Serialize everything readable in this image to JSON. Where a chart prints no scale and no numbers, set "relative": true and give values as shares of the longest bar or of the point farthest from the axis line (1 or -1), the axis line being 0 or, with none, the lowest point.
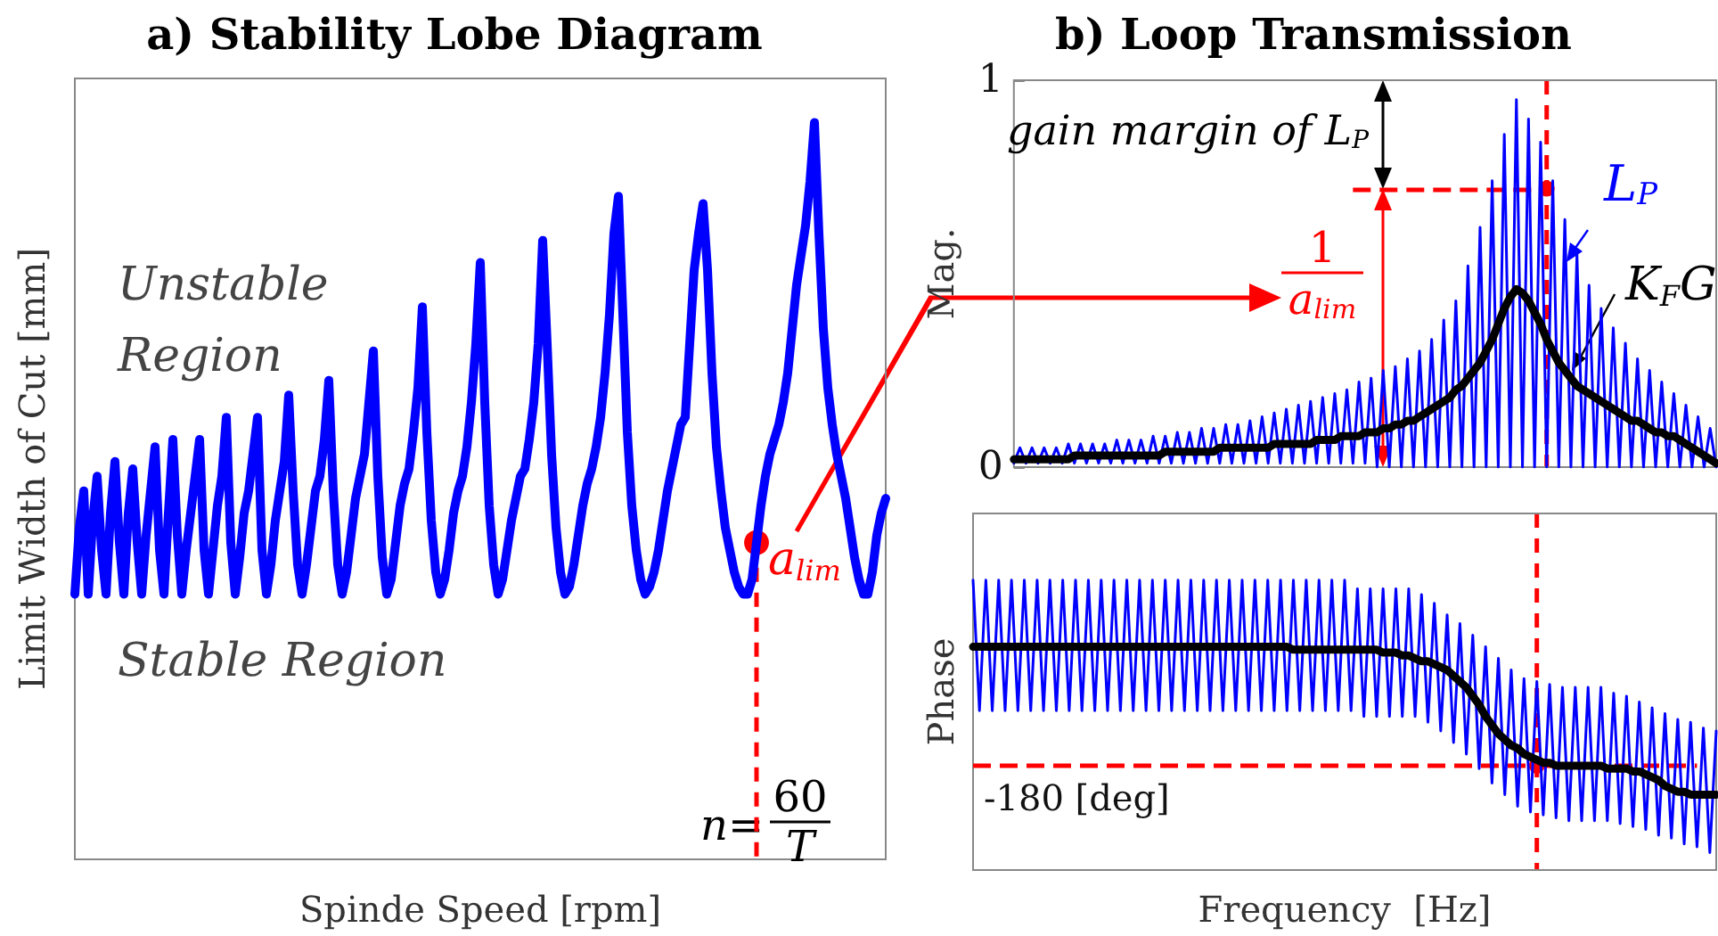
{
  "chart_data": [
    {
      "type": "line",
      "title": "a) Stability Lobe Diagram",
      "xlabel": "Spinde Speed [rpm]",
      "ylabel": "Limit Width of Cut [mm]",
      "relative": true,
      "tick_labels": false,
      "grid": false,
      "marker": "none",
      "categories": [
        null,
        null,
        null,
        null,
        null,
        null,
        null,
        null,
        null,
        null,
        null,
        null,
        null,
        null,
        null,
        null,
        null,
        null,
        null,
        null,
        null,
        null,
        null,
        null,
        null,
        null,
        null,
        null,
        null,
        null,
        null,
        null,
        null,
        null,
        null,
        null,
        null,
        null,
        null,
        null,
        null,
        null,
        null,
        null,
        null,
        null,
        null,
        null,
        null,
        null,
        null,
        null,
        null,
        null,
        null,
        null,
        null,
        null,
        null,
        null,
        null,
        null,
        null,
        null,
        null,
        null,
        null,
        null,
        null,
        null,
        null,
        null,
        null,
        null,
        null,
        null,
        null,
        null,
        null,
        null,
        null,
        null,
        null,
        null,
        null,
        null,
        null,
        null,
        null,
        null,
        null,
        null,
        null,
        null,
        null,
        null,
        null,
        null,
        null,
        null,
        null,
        null,
        null,
        null,
        null,
        null,
        null,
        null,
        null,
        null,
        null,
        null,
        null,
        null,
        null,
        null,
        null,
        null,
        null,
        null,
        null,
        null,
        null,
        null,
        null,
        null,
        null,
        null,
        null,
        null,
        null,
        null,
        null,
        null,
        null,
        null,
        null,
        null,
        null,
        null,
        null,
        null,
        null,
        null,
        null,
        null,
        null,
        null,
        null,
        null,
        null,
        null,
        null,
        null,
        null,
        null,
        null,
        null,
        null,
        null,
        null,
        null,
        null,
        null,
        null,
        null,
        null,
        null,
        null,
        null,
        null,
        null,
        null,
        null,
        null,
        null,
        null,
        null,
        null,
        null,
        null,
        null,
        null
      ],
      "series": [
        {
          "color": "#0000ff",
          "values": [
            0.36,
            0.45,
            0.5,
            0.36,
            0.46,
            0.52,
            0.42,
            0.36,
            0.47,
            0.54,
            0.43,
            0.36,
            0.47,
            0.53,
            0.43,
            0.36,
            0.44,
            0.5,
            0.56,
            0.42,
            0.36,
            0.47,
            0.57,
            0.44,
            0.36,
            0.42,
            0.47,
            0.52,
            0.57,
            0.42,
            0.36,
            0.42,
            0.48,
            0.52,
            0.6,
            0.43,
            0.36,
            0.41,
            0.47,
            0.5,
            0.55,
            0.6,
            0.42,
            0.36,
            0.4,
            0.46,
            0.5,
            0.54,
            0.63,
            0.5,
            0.4,
            0.36,
            0.4,
            0.45,
            0.5,
            0.52,
            0.57,
            0.65,
            0.5,
            0.4,
            0.36,
            0.39,
            0.44,
            0.49,
            0.52,
            0.55,
            0.62,
            0.69,
            0.52,
            0.41,
            0.36,
            0.38,
            0.43,
            0.48,
            0.51,
            0.53,
            0.58,
            0.64,
            0.75,
            0.58,
            0.46,
            0.39,
            0.36,
            0.38,
            0.42,
            0.47,
            0.5,
            0.52,
            0.56,
            0.62,
            0.7,
            0.81,
            0.62,
            0.48,
            0.4,
            0.36,
            0.38,
            0.42,
            0.46,
            0.49,
            0.52,
            0.53,
            0.57,
            0.62,
            0.7,
            0.84,
            0.7,
            0.55,
            0.45,
            0.39,
            0.36,
            0.37,
            0.4,
            0.44,
            0.48,
            0.51,
            0.53,
            0.56,
            0.6,
            0.66,
            0.74,
            0.85,
            0.9,
            0.74,
            0.58,
            0.48,
            0.42,
            0.38,
            0.36,
            0.37,
            0.39,
            0.42,
            0.46,
            0.5,
            0.53,
            0.56,
            0.59,
            0.6,
            0.7,
            0.8,
            0.85,
            0.89,
            0.8,
            0.66,
            0.56,
            0.5,
            0.45,
            0.42,
            0.39,
            0.37,
            0.36,
            0.36,
            0.38,
            0.43,
            0.48,
            0.52,
            0.55,
            0.57,
            0.59,
            0.62,
            0.66,
            0.72,
            0.78,
            0.82,
            0.86,
            0.92,
            1.0,
            0.85,
            0.72,
            0.64,
            0.59,
            0.55,
            0.52,
            0.49,
            0.45,
            0.41,
            0.38,
            0.36,
            0.36,
            0.39,
            0.44,
            0.47,
            0.49
          ]
        }
      ],
      "annotations": [
        "Unstable Region",
        "Stable Region",
        "a$_{lim}$",
        "n=",
        "60",
        "T"
      ]
    },
    {
      "type": "line",
      "title": "b) Loop Transmission",
      "ylabel": "Mag.",
      "ylim": [
        0,
        1
      ],
      "yticks": [
        0,
        1
      ],
      "tick_labels": "y",
      "grid": false,
      "marker": "none",
      "categories": [
        null,
        null,
        null,
        null,
        null,
        null,
        null,
        null,
        null,
        null,
        null,
        null,
        null,
        null,
        null,
        null,
        null,
        null,
        null,
        null,
        null,
        null,
        null,
        null,
        null,
        null,
        null,
        null,
        null,
        null,
        null,
        null,
        null,
        null,
        null,
        null,
        null,
        null,
        null,
        null,
        null,
        null,
        null,
        null,
        null,
        null,
        null,
        null,
        null,
        null,
        null,
        null,
        null,
        null,
        null,
        null,
        null,
        null,
        null,
        null,
        null,
        null,
        null,
        null,
        null,
        null,
        null,
        null,
        null,
        null,
        null,
        null,
        null,
        null,
        null,
        null,
        null,
        null,
        null,
        null,
        null,
        null,
        null,
        null,
        null,
        null,
        null,
        null,
        null,
        null,
        null,
        null,
        null,
        null,
        null,
        null,
        null,
        null,
        null,
        null,
        null,
        null,
        null,
        null,
        null,
        null,
        null,
        null,
        null,
        null,
        null,
        null,
        null,
        null,
        null,
        null,
        null
      ],
      "series": [
        {
          "name": "L$_{P}$",
          "color": "#0000ff",
          "values": [
            0.01,
            0.05,
            0.01,
            0.05,
            0.01,
            0.05,
            0.01,
            0.05,
            0.01,
            0.06,
            0.01,
            0.06,
            0.01,
            0.06,
            0.01,
            0.06,
            0.01,
            0.07,
            0.01,
            0.07,
            0.01,
            0.07,
            0.01,
            0.08,
            0.01,
            0.08,
            0.01,
            0.09,
            0.01,
            0.09,
            0.01,
            0.1,
            0.01,
            0.1,
            0.01,
            0.11,
            0.01,
            0.11,
            0.01,
            0.12,
            0.01,
            0.13,
            0.01,
            0.14,
            0.01,
            0.15,
            0.01,
            0.16,
            0.01,
            0.17,
            0.01,
            0.18,
            0.01,
            0.19,
            0.01,
            0.2,
            0.01,
            0.22,
            0.01,
            0.23,
            0,
            0.25,
            0,
            0.26,
            0,
            0.28,
            0,
            0.3,
            0,
            0.33,
            0,
            0.38,
            0,
            0.43,
            0,
            0.52,
            0,
            0.62,
            0,
            0.74,
            0,
            0.86,
            0,
            0.95,
            0,
            0.9,
            0,
            0.84,
            0,
            0.74,
            0,
            0.64,
            0,
            0.55,
            0,
            0.47,
            0,
            0.41,
            0,
            0.36,
            0,
            0.32,
            0,
            0.28,
            0,
            0.25,
            0,
            0.22,
            0,
            0.19,
            0,
            0.16,
            0,
            0.13,
            0,
            0.1,
            0
          ]
        },
        {
          "name": "K$_{F}$G",
          "color": "#000000",
          "values": [
            0.02,
            0.02,
            0.02,
            0.02,
            0.02,
            0.02,
            0.02,
            0.02,
            0.02,
            0.02,
            0.03,
            0.03,
            0.03,
            0.03,
            0.03,
            0.03,
            0.03,
            0.03,
            0.03,
            0.03,
            0.03,
            0.03,
            0.03,
            0.03,
            0.03,
            0.04,
            0.04,
            0.04,
            0.04,
            0.04,
            0.04,
            0.04,
            0.04,
            0.04,
            0.05,
            0.05,
            0.05,
            0.05,
            0.05,
            0.05,
            0.05,
            0.05,
            0.05,
            0.06,
            0.06,
            0.06,
            0.06,
            0.06,
            0.06,
            0.06,
            0.07,
            0.07,
            0.07,
            0.07,
            0.08,
            0.08,
            0.08,
            0.08,
            0.09,
            0.09,
            0.09,
            0.1,
            0.1,
            0.11,
            0.11,
            0.12,
            0.12,
            0.13,
            0.14,
            0.15,
            0.16,
            0.17,
            0.18,
            0.2,
            0.21,
            0.23,
            0.25,
            0.27,
            0.3,
            0.33,
            0.37,
            0.41,
            0.44,
            0.46,
            0.45,
            0.43,
            0.4,
            0.37,
            0.33,
            0.3,
            0.27,
            0.25,
            0.23,
            0.21,
            0.2,
            0.19,
            0.18,
            0.17,
            0.16,
            0.15,
            0.14,
            0.13,
            0.12,
            0.12,
            0.11,
            0.1,
            0.09,
            0.09,
            0.08,
            0.08,
            0.07,
            0.06,
            0.05,
            0.04,
            0.03,
            0.02,
            0.01
          ]
        }
      ],
      "ref_lines": [
        {
          "axis": "y",
          "value": 0.72,
          "color": "#ff0000",
          "line_style": "dashed"
        }
      ],
      "annotations": [
        "gain margin of L$_{P}$",
        "1",
        "a$_{lim}$"
      ]
    },
    {
      "type": "line",
      "xlabel": "Frequency  [Hz]",
      "ylabel": "Phase",
      "relative": true,
      "tick_labels": false,
      "grid": false,
      "marker": "none",
      "categories": [
        null,
        null,
        null,
        null,
        null,
        null,
        null,
        null,
        null,
        null,
        null,
        null,
        null,
        null,
        null,
        null,
        null,
        null,
        null,
        null,
        null,
        null,
        null,
        null,
        null,
        null,
        null,
        null,
        null,
        null,
        null,
        null,
        null,
        null,
        null,
        null,
        null,
        null,
        null,
        null,
        null,
        null,
        null,
        null,
        null,
        null,
        null,
        null,
        null,
        null,
        null,
        null,
        null,
        null,
        null,
        null,
        null,
        null,
        null,
        null,
        null,
        null,
        null,
        null,
        null,
        null,
        null,
        null,
        null,
        null,
        null,
        null,
        null,
        null,
        null,
        null,
        null,
        null,
        null,
        null,
        null,
        null,
        null,
        null,
        null,
        null,
        null,
        null,
        null,
        null,
        null,
        null,
        null,
        null,
        null,
        null,
        null,
        null,
        null,
        null,
        null,
        null,
        null,
        null,
        null,
        null,
        null,
        null,
        null,
        null,
        null,
        null,
        null,
        null,
        null,
        null,
        null
      ],
      "series": [
        {
          "color": "#0000ff",
          "values": [
            1,
            0.55,
            1,
            0.55,
            1,
            0.55,
            1,
            0.55,
            1,
            0.55,
            1,
            0.55,
            1,
            0.55,
            1,
            0.55,
            1,
            0.55,
            1,
            0.55,
            1,
            0.55,
            1,
            0.55,
            1,
            0.55,
            1,
            0.55,
            1,
            0.55,
            1,
            0.55,
            1,
            0.55,
            1,
            0.55,
            1,
            0.55,
            1,
            0.55,
            1,
            0.55,
            1,
            0.55,
            1,
            0.55,
            1,
            0.55,
            1,
            0.55,
            1,
            0.55,
            1,
            0.55,
            1,
            0.55,
            1,
            0.55,
            1,
            0.55,
            0.97,
            0.53,
            0.97,
            0.53,
            0.97,
            0.53,
            0.97,
            0.53,
            0.97,
            0.53,
            0.95,
            0.51,
            0.92,
            0.48,
            0.88,
            0.44,
            0.85,
            0.4,
            0.81,
            0.35,
            0.77,
            0.3,
            0.73,
            0.26,
            0.69,
            0.22,
            0.66,
            0.2,
            0.65,
            0.19,
            0.64,
            0.18,
            0.63,
            0.17,
            0.63,
            0.17,
            0.63,
            0.17,
            0.63,
            0.17,
            0.61,
            0.16,
            0.6,
            0.15,
            0.58,
            0.14,
            0.56,
            0.12,
            0.54,
            0.11,
            0.52,
            0.09,
            0.51,
            0.08,
            0.49,
            0.06,
            0.48
          ]
        },
        {
          "color": "#000000",
          "values": [
            0.77,
            0.77,
            0.77,
            0.77,
            0.77,
            0.77,
            0.77,
            0.77,
            0.77,
            0.77,
            0.77,
            0.77,
            0.77,
            0.77,
            0.77,
            0.77,
            0.77,
            0.77,
            0.77,
            0.77,
            0.77,
            0.77,
            0.77,
            0.77,
            0.77,
            0.77,
            0.77,
            0.77,
            0.77,
            0.77,
            0.77,
            0.77,
            0.77,
            0.77,
            0.77,
            0.77,
            0.77,
            0.77,
            0.77,
            0.77,
            0.77,
            0.77,
            0.77,
            0.77,
            0.77,
            0.77,
            0.77,
            0.77,
            0.77,
            0.77,
            0.76,
            0.76,
            0.76,
            0.76,
            0.76,
            0.76,
            0.76,
            0.76,
            0.76,
            0.76,
            0.76,
            0.76,
            0.76,
            0.76,
            0.75,
            0.75,
            0.75,
            0.74,
            0.74,
            0.73,
            0.72,
            0.72,
            0.71,
            0.7,
            0.69,
            0.67,
            0.65,
            0.63,
            0.6,
            0.57,
            0.53,
            0.5,
            0.47,
            0.45,
            0.43,
            0.42,
            0.4,
            0.39,
            0.38,
            0.37,
            0.37,
            0.36,
            0.36,
            0.36,
            0.36,
            0.36,
            0.36,
            0.36,
            0.36,
            0.35,
            0.35,
            0.35,
            0.35,
            0.34,
            0.34,
            0.33,
            0.32,
            0.31,
            0.29,
            0.28,
            0.27,
            0.27,
            0.26,
            0.26,
            0.26,
            0.26,
            0.26
          ]
        }
      ],
      "ref_lines": [
        {
          "axis": "y",
          "value": 0.36,
          "label": "-180 [deg]",
          "color": "#ff0000",
          "line_style": "dashed"
        }
      ]
    }
  ]
}
